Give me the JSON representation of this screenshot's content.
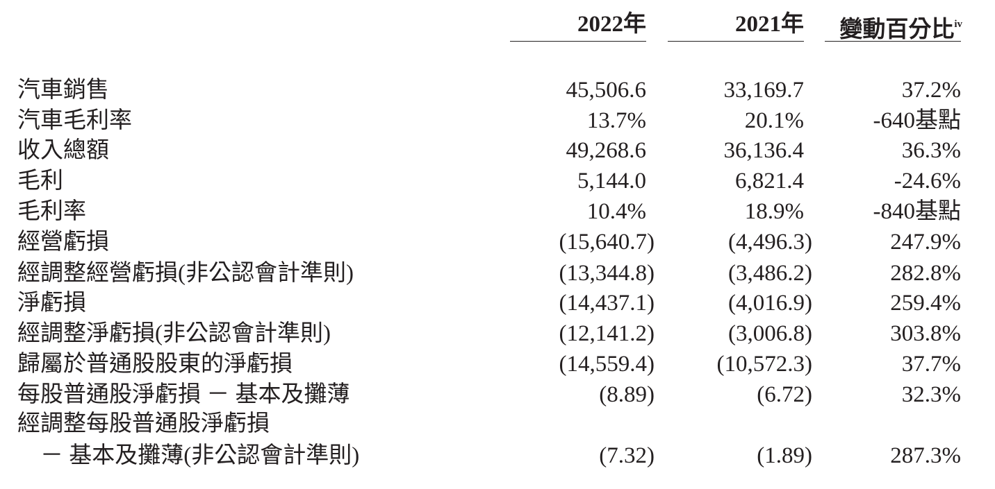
{
  "table": {
    "header": [
      {
        "text": "2022年"
      },
      {
        "text": "2021年"
      },
      {
        "text": "變動百分比",
        "note": "iv"
      }
    ],
    "rows": [
      {
        "label": [
          "汽車銷售"
        ],
        "values": [
          "45,506.6",
          "33,169.7",
          "37.2%"
        ]
      },
      {
        "label": [
          "汽車毛利率"
        ],
        "values": [
          "13.7%",
          "20.1%",
          "-640基點"
        ]
      },
      {
        "label": [
          "收入總額"
        ],
        "values": [
          "49,268.6",
          "36,136.4",
          "36.3%"
        ]
      },
      {
        "label": [
          "毛利"
        ],
        "values": [
          "5,144.0",
          "6,821.4",
          "-24.6%"
        ]
      },
      {
        "label": [
          "毛利率"
        ],
        "values": [
          "10.4%",
          "18.9%",
          "-840基點"
        ]
      },
      {
        "label": [
          "經營虧損"
        ],
        "values": [
          "(15,640.7)",
          "(4,496.3)",
          "247.9%"
        ]
      },
      {
        "label": [
          "經調整經營虧損(非公認會計準則)"
        ],
        "values": [
          "(13,344.8)",
          "(3,486.2)",
          "282.8%"
        ]
      },
      {
        "label": [
          "淨虧損"
        ],
        "values": [
          "(14,437.1)",
          "(4,016.9)",
          "259.4%"
        ]
      },
      {
        "label": [
          "經調整淨虧損(非公認會計準則)"
        ],
        "values": [
          "(12,141.2)",
          "(3,006.8)",
          "303.8%"
        ]
      },
      {
        "label": [
          "歸屬於普通股股東的淨虧損"
        ],
        "values": [
          "(14,559.4)",
          "(10,572.3)",
          "37.7%"
        ]
      },
      {
        "label": [
          "每股普通股淨虧損 － 基本及攤薄"
        ],
        "values": [
          "(8.89)",
          "(6.72)",
          "32.3%"
        ]
      },
      {
        "label": [
          "經調整每股普通股淨虧損",
          "　－ 基本及攤薄(非公認會計準則)"
        ],
        "values": [
          "(7.32)",
          "(1.89)",
          "287.3%"
        ]
      }
    ]
  }
}
